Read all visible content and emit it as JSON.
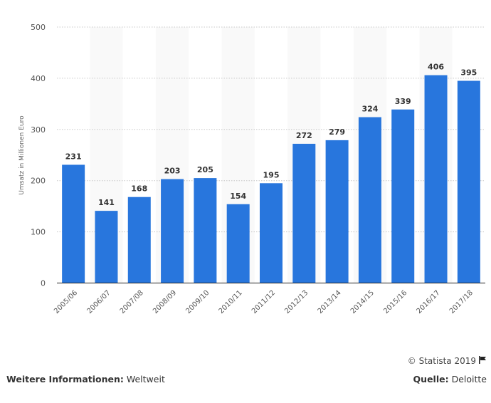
{
  "chart_data": {
    "type": "bar",
    "title": "",
    "xlabel": "",
    "ylabel": "Umsatz in Millionen Euro",
    "ylim": [
      0,
      500
    ],
    "yticks": [
      0,
      100,
      200,
      300,
      400,
      500
    ],
    "grid": true,
    "categories": [
      "2005/06",
      "2006/07",
      "2007/08",
      "2008/09",
      "2009/10",
      "2010/11",
      "2011/12",
      "2012/13",
      "2013/14",
      "2014/15",
      "2015/16",
      "2016/17",
      "2017/18"
    ],
    "values": [
      231,
      141,
      168,
      203,
      205,
      154,
      195,
      272,
      279,
      324,
      339,
      406,
      395
    ],
    "bar_color": "#2876dd"
  },
  "footer": {
    "copyright": "© Statista 2019",
    "info_label": "Weitere Informationen:",
    "info_value": "Weltweit",
    "source_label": "Quelle:",
    "source_value": "Deloitte"
  }
}
